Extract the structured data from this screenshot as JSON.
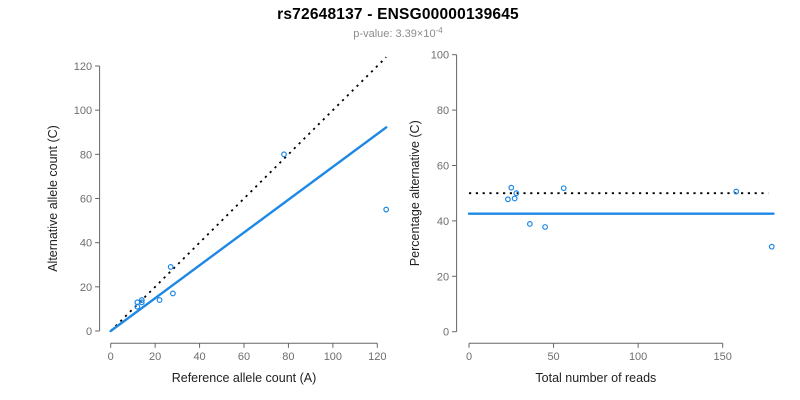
{
  "header": {
    "title": "rs72648137 - ENSG00000139645",
    "pvalue_prefix": "p-value: 3.39×10",
    "pvalue_exponent": "-4"
  },
  "colors": {
    "accent_blue": "#1E88E5",
    "dashed_black": "#000000",
    "axis_line": "#666666",
    "tick_label": "#6e6e6e",
    "axis_label": "#1f1f1f",
    "subtitle_gray": "#8c8c8c"
  },
  "chart_data": [
    {
      "id": "allele-counts",
      "type": "scatter",
      "xlabel": "Reference allele count (A)",
      "ylabel": "Alternative allele count (C)",
      "x_ticks": [
        0,
        20,
        40,
        60,
        80,
        100,
        120
      ],
      "y_ticks": [
        0,
        20,
        40,
        60,
        80,
        100,
        120
      ],
      "xlim": [
        0,
        124
      ],
      "ylim": [
        0,
        124
      ],
      "grid": false,
      "points": [
        [
          12,
          13
        ],
        [
          14,
          14
        ],
        [
          14,
          13
        ],
        [
          12,
          11
        ],
        [
          22,
          14
        ],
        [
          28,
          17
        ],
        [
          27,
          29
        ],
        [
          78,
          80
        ],
        [
          124,
          55
        ]
      ],
      "lines": [
        {
          "name": "identity-line",
          "style": "dashed",
          "color": "#000000",
          "x1": 0,
          "y1": 0,
          "x2": 124,
          "y2": 124
        },
        {
          "name": "fit-line",
          "style": "solid",
          "color": "#1E88E5",
          "x1": 0,
          "y1": 0,
          "x2": 124,
          "y2": 92.2
        }
      ]
    },
    {
      "id": "read-percentage",
      "type": "scatter",
      "xlabel": "Total number of reads",
      "ylabel": "Percentage alternative (C)",
      "x_ticks": [
        0,
        50,
        100,
        150
      ],
      "y_ticks": [
        0,
        20,
        40,
        60,
        80,
        100
      ],
      "xlim": [
        0,
        180
      ],
      "ylim": [
        0,
        100
      ],
      "grid": false,
      "points": [
        [
          25,
          52.0
        ],
        [
          28,
          50.0
        ],
        [
          27,
          48.1
        ],
        [
          23,
          47.8
        ],
        [
          36,
          38.9
        ],
        [
          45,
          37.8
        ],
        [
          56,
          51.8
        ],
        [
          158,
          50.6
        ],
        [
          179,
          30.7
        ]
      ],
      "lines": [
        {
          "name": "expected-50pct-line",
          "style": "dashed",
          "color": "#000000",
          "x1": 0,
          "y1": 50,
          "x2": 177,
          "y2": 50
        },
        {
          "name": "observed-mean-line",
          "style": "solid",
          "color": "#1E88E5",
          "x1": 0,
          "y1": 42.6,
          "x2": 180,
          "y2": 42.6
        }
      ]
    }
  ]
}
